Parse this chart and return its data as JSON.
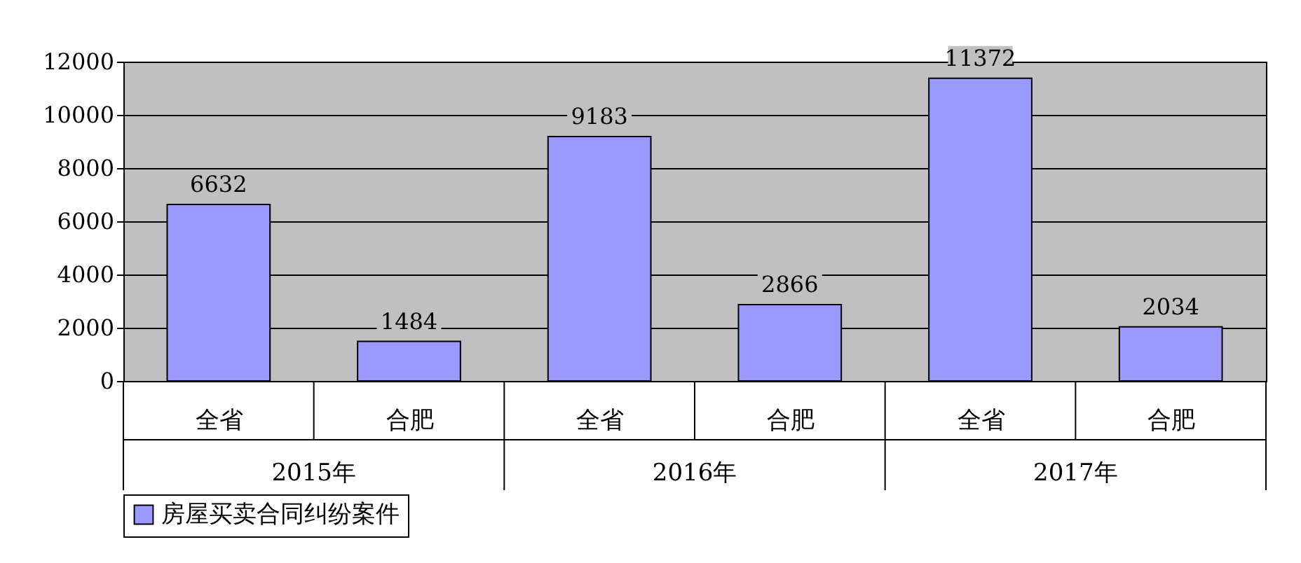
{
  "chart_data": {
    "type": "bar",
    "categories": [
      "全省",
      "合肥",
      "全省",
      "合肥",
      "全省",
      "合肥"
    ],
    "series": [
      {
        "name": "房屋买卖合同纠纷案件",
        "color": "#9999ff",
        "values": [
          6632,
          1484,
          9183,
          2866,
          11372,
          2034
        ]
      }
    ],
    "annotations": [
      "2015年",
      "2016年",
      "2017年"
    ],
    "ylim": [
      0,
      12000
    ],
    "yticks": [
      0,
      2000,
      4000,
      6000,
      8000,
      10000,
      12000
    ],
    "grid": "y",
    "legend": "bottom",
    "data_labels": true
  }
}
